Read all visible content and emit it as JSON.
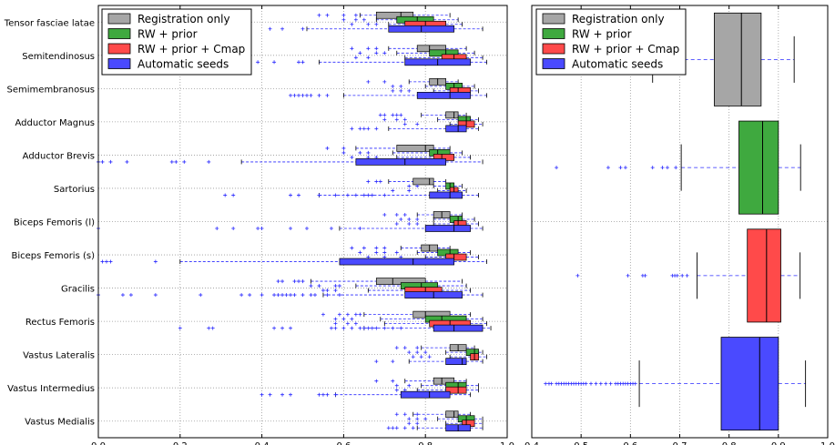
{
  "colors": {
    "registration": "#a6a6a6",
    "rw_prior": "#3fa93f",
    "rw_prior_cmap": "#ff4a4a",
    "auto": "#4a4aff",
    "whisker": "#2a2aff",
    "grid": "#9a9a9a"
  },
  "legend_labels": [
    "Registration only",
    "RW + prior",
    "RW + prior + Cmap",
    "Automatic seeds"
  ],
  "chart_data": [
    {
      "type": "box",
      "orientation": "horizontal",
      "xlim": [
        0.0,
        1.0
      ],
      "xticks": [
        "0.0",
        "0.2",
        "0.4",
        "0.6",
        "0.8",
        "1.0"
      ],
      "grid": true,
      "legend_position": "top-left",
      "series_names": [
        "Registration only",
        "RW + prior",
        "RW + prior + Cmap",
        "Automatic seeds"
      ],
      "categories": [
        "Tensor fasciae latae",
        "Semitendinosus",
        "Semimembranosus",
        "Adductor Magnus",
        "Adductor Brevis",
        "Sartorius",
        "Biceps Femoris (l)",
        "Biceps Femoris (s)",
        "Gracilis",
        "Rectus Femoris",
        "Vastus Lateralis",
        "Vastus Intermedius",
        "Vastus Medialis"
      ],
      "boxes": [
        [
          [
            0.64,
            0.68,
            0.74,
            0.77,
            0.86
          ],
          [
            0.68,
            0.73,
            0.78,
            0.82,
            0.88
          ],
          [
            0.71,
            0.75,
            0.8,
            0.85,
            0.89
          ],
          [
            0.51,
            0.71,
            0.79,
            0.87,
            0.94
          ]
        ],
        [
          [
            0.71,
            0.78,
            0.81,
            0.85,
            0.9
          ],
          [
            0.73,
            0.81,
            0.85,
            0.88,
            0.92
          ],
          [
            0.75,
            0.84,
            0.87,
            0.9,
            0.94
          ],
          [
            0.54,
            0.75,
            0.83,
            0.91,
            0.95
          ]
        ],
        [
          [
            0.76,
            0.81,
            0.83,
            0.85,
            0.88
          ],
          [
            0.8,
            0.85,
            0.87,
            0.89,
            0.92
          ],
          [
            0.82,
            0.86,
            0.88,
            0.91,
            0.93
          ],
          [
            0.6,
            0.78,
            0.86,
            0.91,
            0.95
          ]
        ],
        [
          [
            0.79,
            0.85,
            0.87,
            0.88,
            0.9
          ],
          [
            0.83,
            0.88,
            0.9,
            0.91,
            0.93
          ],
          [
            0.86,
            0.88,
            0.9,
            0.92,
            0.94
          ],
          [
            0.71,
            0.85,
            0.88,
            0.9,
            0.93
          ]
        ],
        [
          [
            0.63,
            0.73,
            0.8,
            0.82,
            0.86
          ],
          [
            0.72,
            0.81,
            0.83,
            0.86,
            0.89
          ],
          [
            0.73,
            0.82,
            0.84,
            0.87,
            0.91
          ],
          [
            0.35,
            0.63,
            0.75,
            0.85,
            0.94
          ]
        ],
        [
          [
            0.71,
            0.77,
            0.81,
            0.82,
            0.85
          ],
          [
            0.82,
            0.85,
            0.86,
            0.87,
            0.89
          ],
          [
            0.83,
            0.86,
            0.87,
            0.88,
            0.9
          ],
          [
            0.54,
            0.81,
            0.86,
            0.89,
            0.93
          ]
        ],
        [
          [
            0.78,
            0.82,
            0.84,
            0.86,
            0.89
          ],
          [
            0.82,
            0.86,
            0.88,
            0.89,
            0.92
          ],
          [
            0.82,
            0.87,
            0.88,
            0.9,
            0.93
          ],
          [
            0.59,
            0.8,
            0.87,
            0.91,
            0.94
          ]
        ],
        [
          [
            0.74,
            0.79,
            0.81,
            0.83,
            0.86
          ],
          [
            0.78,
            0.83,
            0.86,
            0.88,
            0.91
          ],
          [
            0.8,
            0.85,
            0.87,
            0.9,
            0.93
          ],
          [
            0.2,
            0.59,
            0.77,
            0.87,
            0.95
          ]
        ],
        [
          [
            0.52,
            0.68,
            0.72,
            0.8,
            0.89
          ],
          [
            0.63,
            0.74,
            0.79,
            0.83,
            0.9
          ],
          [
            0.66,
            0.75,
            0.8,
            0.84,
            0.91
          ],
          [
            0.55,
            0.75,
            0.82,
            0.89,
            0.94
          ]
        ],
        [
          [
            0.65,
            0.77,
            0.8,
            0.86,
            0.91
          ],
          [
            0.69,
            0.8,
            0.84,
            0.9,
            0.94
          ],
          [
            0.7,
            0.81,
            0.86,
            0.91,
            0.95
          ],
          [
            0.65,
            0.82,
            0.87,
            0.94,
            0.96
          ]
        ],
        [
          [
            0.79,
            0.86,
            0.88,
            0.9,
            0.92
          ],
          [
            0.85,
            0.9,
            0.92,
            0.93,
            0.94
          ],
          [
            0.86,
            0.91,
            0.92,
            0.93,
            0.95
          ],
          [
            0.76,
            0.85,
            0.89,
            0.9,
            0.94
          ]
        ],
        [
          [
            0.75,
            0.82,
            0.84,
            0.87,
            0.9
          ],
          [
            0.79,
            0.85,
            0.88,
            0.9,
            0.93
          ],
          [
            0.78,
            0.85,
            0.88,
            0.9,
            0.93
          ],
          [
            0.58,
            0.74,
            0.81,
            0.86,
            0.91
          ]
        ],
        [
          [
            0.77,
            0.85,
            0.87,
            0.88,
            0.91
          ],
          [
            0.83,
            0.88,
            0.9,
            0.92,
            0.94
          ],
          [
            0.85,
            0.89,
            0.9,
            0.92,
            0.94
          ],
          [
            0.78,
            0.85,
            0.88,
            0.91,
            0.94
          ]
        ]
      ],
      "outliers": [
        [
          [
            0.54,
            0.56,
            0.6,
            0.63
          ],
          [
            0.6,
            0.63,
            0.65
          ],
          [
            0.62,
            0.66,
            0.68
          ],
          [
            0.42,
            0.45,
            0.5
          ]
        ],
        [
          [
            0.62,
            0.66,
            0.68
          ],
          [
            0.64,
            0.68,
            0.7
          ],
          [
            0.63,
            0.66
          ],
          [
            0.39,
            0.43,
            0.49,
            0.5
          ]
        ],
        [
          [
            0.66,
            0.7
          ],
          [
            0.72,
            0.74
          ],
          [
            0.72,
            0.74,
            0.76
          ],
          [
            0.47,
            0.48,
            0.49,
            0.5,
            0.51,
            0.52,
            0.54,
            0.56
          ]
        ],
        [
          [
            0.69,
            0.7,
            0.72,
            0.73,
            0.74
          ],
          [
            0.7,
            0.73,
            0.75
          ],
          [
            0.75,
            0.78
          ],
          [
            0.62,
            0.64,
            0.65,
            0.66,
            0.68
          ]
        ],
        [
          [
            0.56,
            0.6
          ],
          [
            0.6,
            0.64,
            0.66
          ],
          [
            0.62,
            0.66,
            0.68
          ],
          [
            0.0,
            0.01,
            0.03,
            0.07,
            0.18,
            0.19,
            0.21,
            0.27
          ]
        ],
        [
          [
            0.66,
            0.68,
            0.69
          ],
          [
            0.76,
            0.78
          ],
          [
            0.72,
            0.76
          ],
          [
            0.31,
            0.33,
            0.47,
            0.49,
            0.54,
            0.58,
            0.61,
            0.63,
            0.65,
            0.66,
            0.67,
            0.7
          ]
        ],
        [
          [
            0.7,
            0.73,
            0.75
          ],
          [
            0.74,
            0.76,
            0.78
          ],
          [
            0.73,
            0.76,
            0.78
          ],
          [
            0.0,
            0.29,
            0.33,
            0.39,
            0.4,
            0.47,
            0.51,
            0.57,
            0.64
          ]
        ],
        [
          [
            0.62,
            0.65,
            0.68,
            0.7
          ],
          [
            0.64,
            0.68,
            0.7,
            0.73
          ],
          [
            0.66,
            0.7,
            0.74
          ],
          [
            0.01,
            0.02,
            0.03,
            0.14
          ]
        ],
        [
          [
            0.44,
            0.45,
            0.48,
            0.49,
            0.5
          ],
          [
            0.52,
            0.54,
            0.58,
            0.59
          ],
          [
            0.55,
            0.56,
            0.58
          ],
          [
            0.0,
            0.06,
            0.08,
            0.14,
            0.25,
            0.35,
            0.37,
            0.4,
            0.43,
            0.44,
            0.45,
            0.46,
            0.47,
            0.48,
            0.5,
            0.52,
            0.53,
            0.56,
            0.59
          ]
        ],
        [
          [
            0.55,
            0.59,
            0.61,
            0.63,
            0.64
          ],
          [
            0.58,
            0.6,
            0.62
          ],
          [
            0.58,
            0.61,
            0.63
          ],
          [
            0.2,
            0.27,
            0.28,
            0.43,
            0.45,
            0.47,
            0.57,
            0.58,
            0.6,
            0.62,
            0.64,
            0.65,
            0.66,
            0.67,
            0.68,
            0.7,
            0.72,
            0.74
          ]
        ],
        [
          [
            0.73,
            0.75,
            0.78
          ],
          [
            0.76,
            0.78,
            0.8
          ],
          [
            0.77,
            0.79,
            0.81
          ],
          [
            0.68,
            0.72
          ]
        ],
        [
          [
            0.68,
            0.72
          ],
          [
            0.73,
            0.76
          ],
          [
            0.73,
            0.75
          ],
          [
            0.4,
            0.42,
            0.45,
            0.47,
            0.54,
            0.55,
            0.56,
            0.58
          ]
        ],
        [
          [
            0.73,
            0.75,
            0.78
          ],
          [
            0.76,
            0.78,
            0.8
          ],
          [
            0.76,
            0.78
          ],
          [
            0.71,
            0.72,
            0.73,
            0.75,
            0.77
          ]
        ]
      ]
    },
    {
      "type": "box",
      "orientation": "horizontal",
      "xlim": [
        0.4,
        1.0
      ],
      "xticks": [
        "0.4",
        "0.5",
        "0.6",
        "0.7",
        "0.8",
        "0.9",
        "1.0"
      ],
      "grid": true,
      "legend_position": "top-left",
      "series_names": [
        "Registration only",
        "RW + prior",
        "RW + prior + Cmap",
        "Automatic seeds"
      ],
      "boxes": [
        [
          0.645,
          0.77,
          0.825,
          0.865,
          0.932
        ],
        [
          0.703,
          0.82,
          0.868,
          0.9,
          0.945
        ],
        [
          0.735,
          0.837,
          0.876,
          0.905,
          0.944
        ],
        [
          0.618,
          0.784,
          0.862,
          0.9,
          0.955
        ]
      ],
      "outliers": [
        [],
        [
          0.45,
          0.555,
          0.58,
          0.59,
          0.645,
          0.665,
          0.675,
          0.692
        ],
        [
          0.493,
          0.595,
          0.625,
          0.63,
          0.685,
          0.69,
          0.695,
          0.705,
          0.715
        ],
        [
          0.428,
          0.435,
          0.44,
          0.45,
          0.455,
          0.46,
          0.465,
          0.47,
          0.475,
          0.48,
          0.485,
          0.49,
          0.495,
          0.5,
          0.505,
          0.51,
          0.52,
          0.53,
          0.54,
          0.55,
          0.56,
          0.57,
          0.575,
          0.58,
          0.585,
          0.59,
          0.595,
          0.6,
          0.605,
          0.61
        ]
      ]
    }
  ]
}
